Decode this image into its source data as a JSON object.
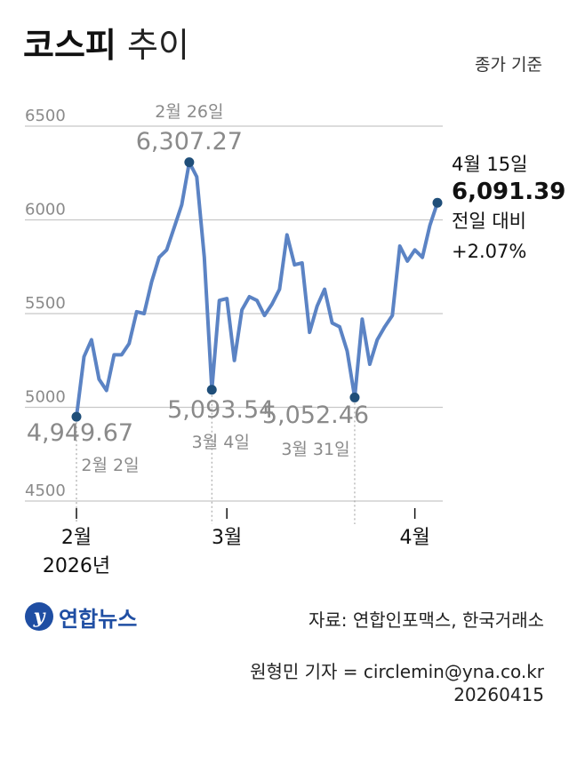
{
  "header": {
    "title_bold": "코스피",
    "title_light": "추이",
    "note": "종가 기준"
  },
  "footer": {
    "logo_text": "연합뉴스",
    "logo_mark": "y",
    "source": "자료: 연합인포맥스, 한국거래소",
    "reporter": "원형민 기자 = circlemin@yna.co.kr",
    "date": "20260415"
  },
  "colors": {
    "line": "#5b83c4",
    "marker": "#1f4e79",
    "grid": "#c8c8c8",
    "label_gray": "#8a8a8a",
    "brand": "#1f4ea3"
  },
  "chart_data": {
    "type": "line",
    "ylim": [
      4500,
      6500
    ],
    "yticks": [
      "6500",
      "6000",
      "5500",
      "5000",
      "4500"
    ],
    "ytick_values": [
      6500,
      6000,
      5500,
      5000,
      4500
    ],
    "x_month_labels": [
      {
        "label": "2월",
        "sub": "2026년",
        "index": 0
      },
      {
        "label": "3월",
        "sub": "",
        "index": 20
      },
      {
        "label": "4월",
        "sub": "",
        "index": 45
      }
    ],
    "series": [
      {
        "values": [
          4949.67,
          5270,
          5360,
          5150,
          5090,
          5280,
          5280,
          5340,
          5510,
          5500,
          5670,
          5800,
          5840,
          5960,
          6080,
          6307.27,
          6230,
          5800,
          5093.54,
          5570,
          5580,
          5250,
          5520,
          5590,
          5570,
          5490,
          5550,
          5630,
          5920,
          5760,
          5770,
          5400,
          5540,
          5630,
          5450,
          5430,
          5300,
          5052.46,
          5470,
          5230,
          5360,
          5430,
          5490,
          5860,
          5780,
          5840,
          5800,
          5970,
          6091.39
        ]
      }
    ],
    "annotations": [
      {
        "index": 0,
        "date": "2월 2일",
        "value": "4,949.67"
      },
      {
        "index": 15,
        "date": "2월 26일",
        "value": "6,307.27"
      },
      {
        "index": 18,
        "date": "3월 4일",
        "value": "5,093.54"
      },
      {
        "index": 37,
        "date": "3월 31일",
        "value": "5,052.46"
      },
      {
        "index": 48,
        "date": "4월 15일",
        "value": "6,091.39",
        "change_label": "전일 대비",
        "change": "+2.07%"
      }
    ]
  }
}
